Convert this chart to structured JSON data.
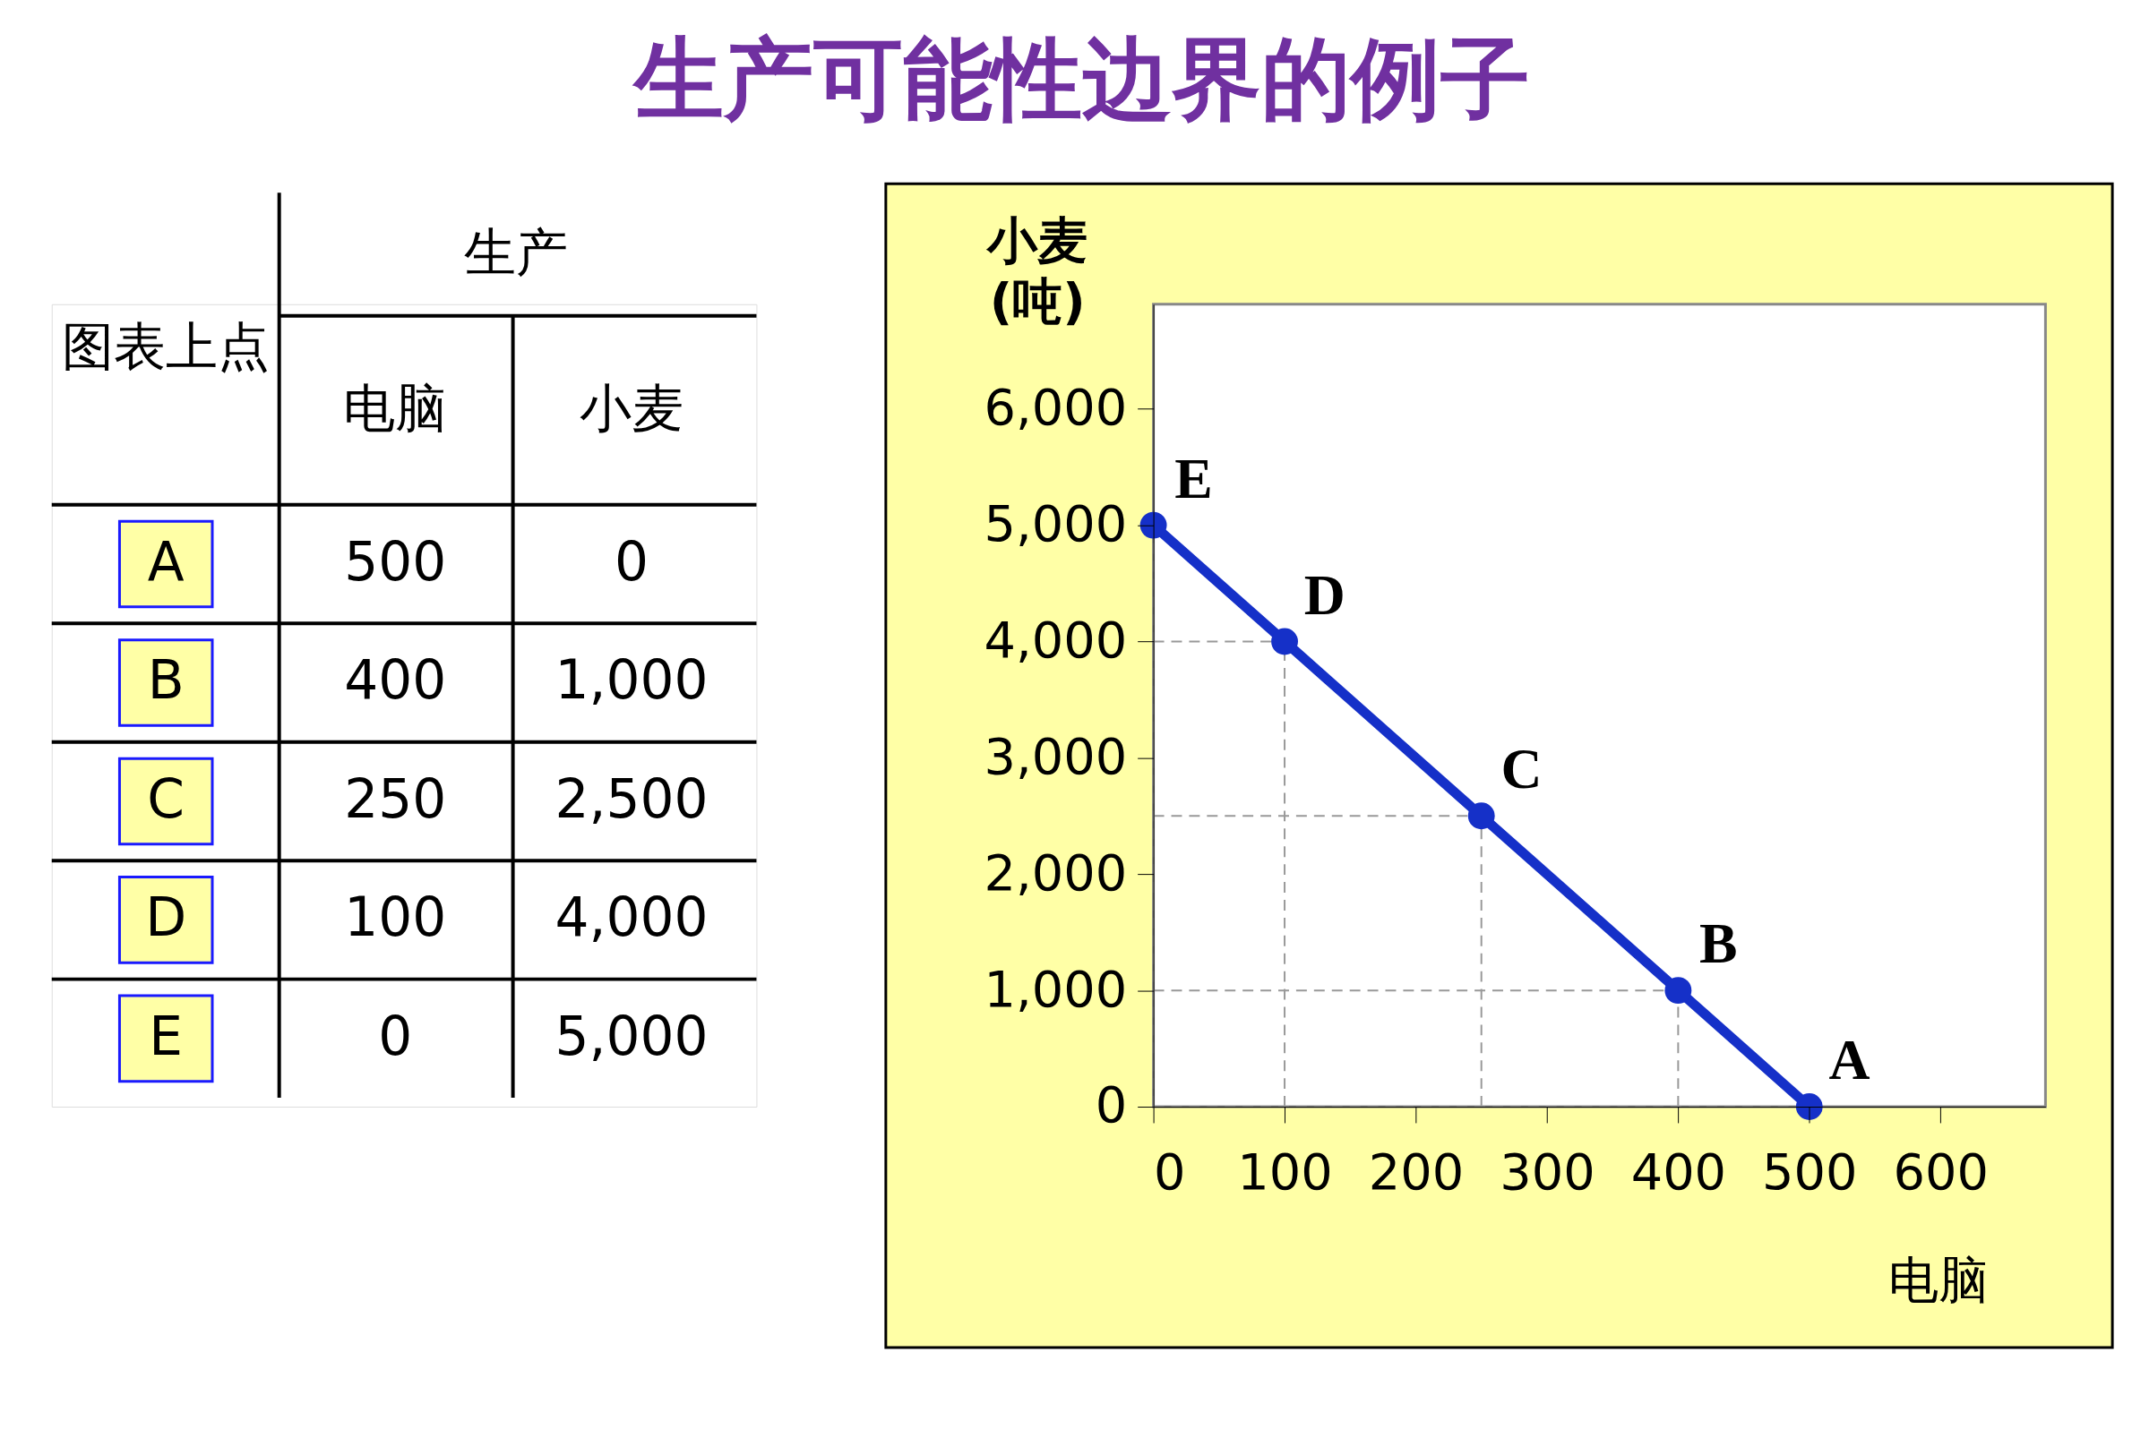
{
  "chart_data": [
    {
      "type": "other",
      "annotations": [
        "图表上点",
        "生产",
        "电脑",
        "小麦",
        "A",
        "500",
        "0",
        "B",
        "400",
        "1,000",
        "C",
        "250",
        "2,500",
        "D",
        "100",
        "4,000",
        "E",
        "0",
        "5,000"
      ]
    },
    {
      "type": "line",
      "title": "生产可能性边界的例子",
      "xlabel": "电脑",
      "ylabel": "小麦 (吨)",
      "x": [
        500,
        400,
        250,
        100,
        0
      ],
      "series": [
        {
          "color": "#1530c8",
          "values": [
            0,
            1000,
            2500,
            4000,
            5000
          ]
        }
      ],
      "xlim": [
        0,
        680
      ],
      "xticks": [
        0,
        100,
        200,
        300,
        400,
        500,
        600
      ],
      "ylim": [
        0,
        6900
      ],
      "yticks": [
        0,
        {
          "value": 1000,
          "label": "1,000"
        },
        {
          "value": 2000,
          "label": "2,000"
        },
        {
          "value": 3000,
          "label": "3,000"
        },
        {
          "value": 4000,
          "label": "4,000"
        },
        {
          "value": 5000,
          "label": "5,000"
        },
        {
          "value": 6000,
          "label": "6,000"
        }
      ],
      "annotations": [
        {
          "text": "A",
          "x": 500,
          "y": 0
        },
        {
          "text": "B",
          "x": 400,
          "y": 1000
        },
        {
          "text": "C",
          "x": 250,
          "y": 2500
        },
        {
          "text": "D",
          "x": 100,
          "y": 4000
        },
        {
          "text": "E",
          "x": 0,
          "y": 5000
        }
      ],
      "grid": false,
      "marker": "circle",
      "line_style": "solid"
    }
  ]
}
